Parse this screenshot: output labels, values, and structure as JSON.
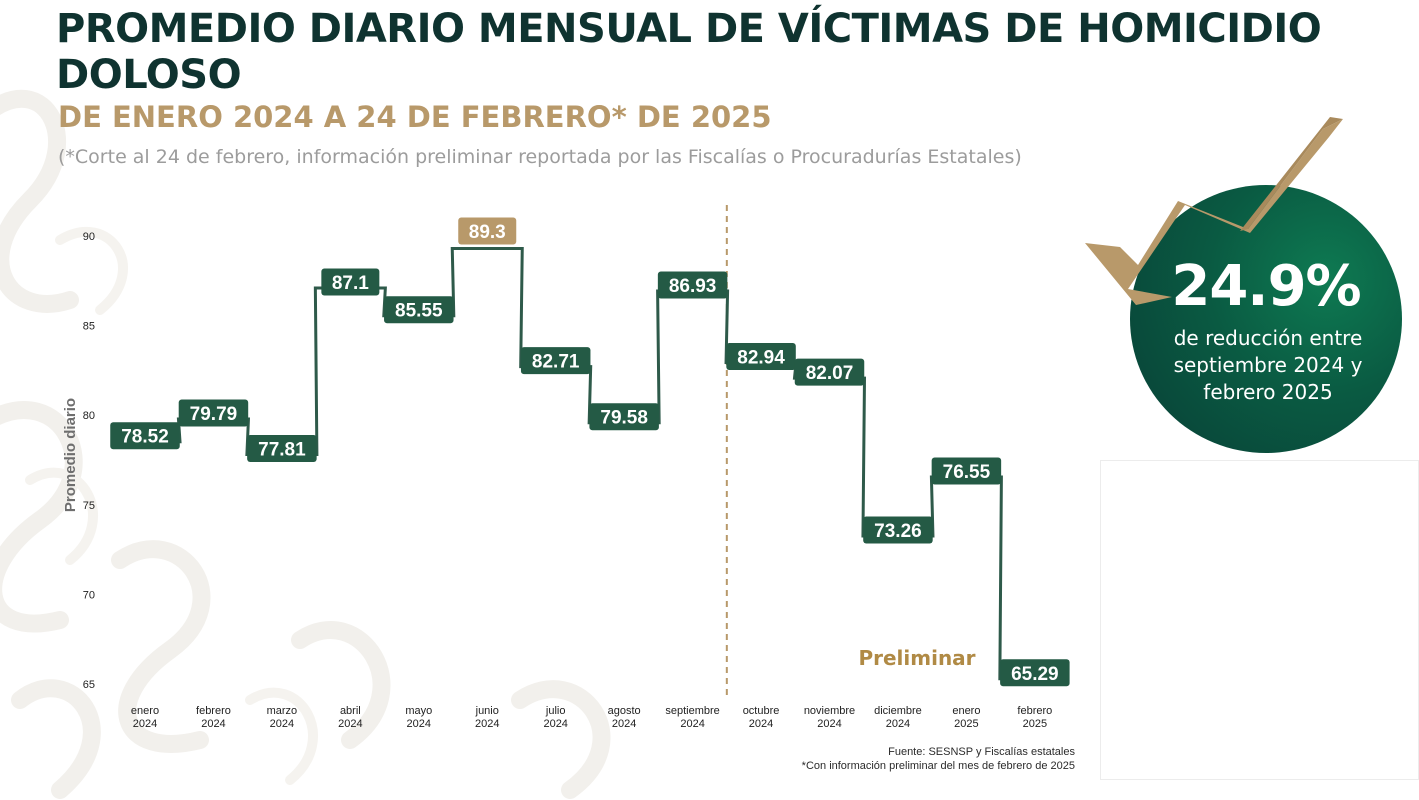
{
  "header": {
    "title": "PROMEDIO DIARIO MENSUAL DE VÍCTIMAS DE HOMICIDIO DOLOSO",
    "subtitle": "DE ENERO 2024 A 24 DE FEBRERO* DE 2025",
    "note": "(*Corte al 24 de febrero, información preliminar reportada por las Fiscalías o Procuradurías Estatales)"
  },
  "chart_data": {
    "type": "line",
    "step": true,
    "ylabel": "Promedio diario",
    "ylim": [
      65,
      90
    ],
    "yticks": [
      65,
      70,
      75,
      80,
      85,
      90
    ],
    "categories": [
      [
        "enero",
        "2024"
      ],
      [
        "febrero",
        "2024"
      ],
      [
        "marzo",
        "2024"
      ],
      [
        "abril",
        "2024"
      ],
      [
        "mayo",
        "2024"
      ],
      [
        "junio",
        "2024"
      ],
      [
        "julio",
        "2024"
      ],
      [
        "agosto",
        "2024"
      ],
      [
        "septiembre",
        "2024"
      ],
      [
        "octubre",
        "2024"
      ],
      [
        "noviembre",
        "2024"
      ],
      [
        "diciembre",
        "2024"
      ],
      [
        "enero",
        "2025"
      ],
      [
        "febrero",
        "2025"
      ]
    ],
    "values": [
      78.52,
      79.79,
      77.81,
      87.1,
      85.55,
      89.3,
      82.71,
      79.58,
      86.93,
      82.94,
      82.07,
      73.26,
      76.55,
      65.29
    ],
    "value_labels": [
      "78.52",
      "79.79",
      "77.81",
      "87.1",
      "85.55",
      "89.3",
      "82.71",
      "79.58",
      "86.93",
      "82.94",
      "82.07",
      "73.26",
      "76.55",
      "65.29"
    ],
    "highlight_index": 5,
    "divider_after": "septiembre 2024",
    "preliminary_label": "Preliminar",
    "grid": false,
    "colors": {
      "line": "#2e5a4a",
      "label_bg": "#245a45",
      "highlight_bg": "#b8996a",
      "divider": "#b8996a",
      "preliminar": "#b08a45"
    }
  },
  "callout": {
    "value": "24.9%",
    "text": "de reducción entre septiembre 2024 y febrero 2025",
    "colors": {
      "circle": "#0a5a42",
      "arrow": "#b8996a"
    }
  },
  "footer": {
    "source": "Fuente: SESNSP y Fiscalías estatales",
    "note": "*Con información preliminar del mes de febrero de 2025"
  }
}
